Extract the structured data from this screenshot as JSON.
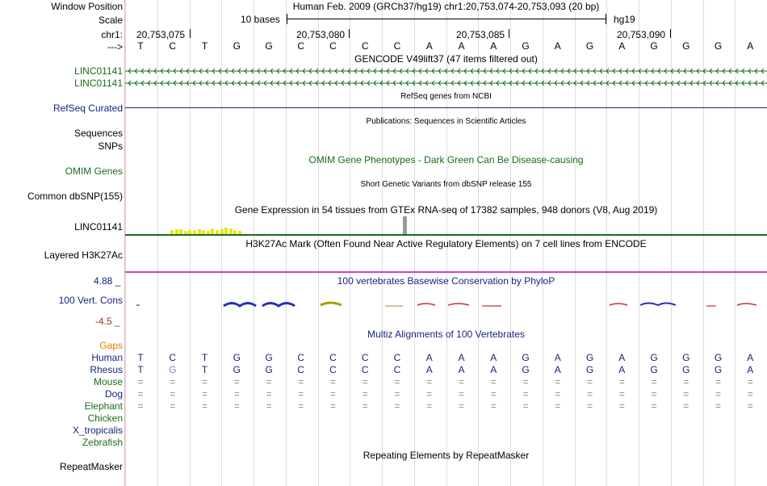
{
  "header": {
    "window_position_label": "Window Position",
    "window_position_text": "Human Feb. 2009 (GRCh37/hg19)   chr1:20,753,074-20,753,093 (20 bp)",
    "scale_label": "Scale",
    "scale_text": "10 bases",
    "assembly": "hg19",
    "chrom_label": "chr1:",
    "arrow_label": "--->",
    "positions": [
      "20,753,075",
      "20,753,080",
      "20,753,085",
      "20,753,090"
    ]
  },
  "sequence": [
    "T",
    "C",
    "T",
    "G",
    "G",
    "C",
    "C",
    "C",
    "C",
    "A",
    "A",
    "A",
    "G",
    "A",
    "G",
    "A",
    "G",
    "G",
    "G",
    "A"
  ],
  "tracks": {
    "gencode_title": "GENCODE V49lift37 (47 items filtered out)",
    "gencode_items": [
      "LINC01141",
      "LINC01141"
    ],
    "refseq_title": "RefSeq genes from NCBI",
    "refseq_label": "RefSeq Curated",
    "publications_title": "Publications: Sequences in Scientific Articles",
    "sequences_label": "Sequences",
    "snps_label": "SNPs",
    "omim_title": "OMIM Gene Phenotypes - Dark Green Can Be Disease-causing",
    "omim_label": "OMIM Genes",
    "dbsnp_title": "Short Genetic Variants from dbSNP release 155",
    "dbsnp_label": "Common dbSNP(155)",
    "gtex_title": "Gene Expression in 54 tissues from GTEx RNA-seq of 17382 samples, 948 donors (V8, Aug 2019)",
    "gtex_label": "LINC01141",
    "h3k27ac_title": "H3K27Ac Mark (Often Found Near Active Regulatory Elements) on 7 cell lines from ENCODE",
    "h3k27ac_label": "Layered H3K27Ac",
    "cons_max": "4.88 _",
    "cons_title": "100 vertebrates Basewise Conservation by PhyloP",
    "cons_label": "100 Vert. Cons",
    "cons_min": "-4.5 _",
    "multiz_title": "Multiz Alignments of 100 Vertebrates",
    "gaps_label": "Gaps",
    "repeat_title": "Repeating Elements by RepeatMasker",
    "repeat_label": "RepeatMasker"
  },
  "alignment": {
    "species": [
      "Human",
      "Rhesus",
      "Mouse",
      "Dog",
      "Elephant",
      "Chicken",
      "X_tropicalis",
      "Zebrafish"
    ],
    "human": [
      "T",
      "C",
      "T",
      "G",
      "G",
      "C",
      "C",
      "C",
      "C",
      "A",
      "A",
      "A",
      "G",
      "A",
      "G",
      "A",
      "G",
      "G",
      "G",
      "A"
    ],
    "rhesus": [
      "T",
      "G",
      "T",
      "G",
      "G",
      "C",
      "C",
      "C",
      "C",
      "A",
      "A",
      "A",
      "G",
      "A",
      "G",
      "A",
      "G",
      "G",
      "G",
      "A"
    ],
    "double_line_symbol": "="
  },
  "colors": {
    "gencode": "#1b6b1b",
    "refseq": "#1a237e",
    "gtex_bar": "#e6e619",
    "gtex_tall": "#999999",
    "h3k27ac": "#cc44cc",
    "cons_blue": "#2630b5",
    "cons_olive": "#a8a000",
    "cons_red": "#d03030",
    "gaps": "#e08000"
  }
}
